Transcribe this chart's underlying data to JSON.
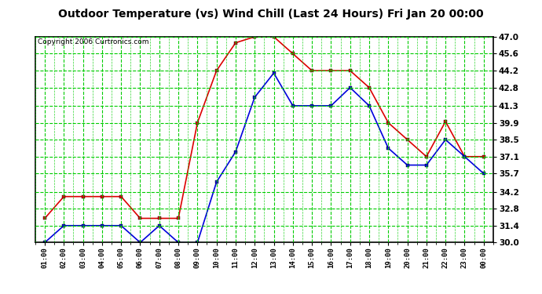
{
  "title": "Outdoor Temperature (vs) Wind Chill (Last 24 Hours) Fri Jan 20 00:00",
  "copyright": "Copyright 2006 Curtronics.com",
  "x_labels": [
    "01:00",
    "02:00",
    "03:00",
    "04:00",
    "05:00",
    "06:00",
    "07:00",
    "08:00",
    "09:00",
    "10:00",
    "11:00",
    "12:00",
    "13:00",
    "14:00",
    "15:00",
    "16:00",
    "17:00",
    "18:00",
    "19:00",
    "20:00",
    "21:00",
    "22:00",
    "23:00",
    "00:00"
  ],
  "y_min": 30.0,
  "y_max": 47.0,
  "y_ticks": [
    30.0,
    31.4,
    32.8,
    34.2,
    35.7,
    37.1,
    38.5,
    39.9,
    41.3,
    42.8,
    44.2,
    45.6,
    47.0
  ],
  "temp_color": "#dd0000",
  "windchill_color": "#0000dd",
  "grid_color": "#00cc00",
  "plot_bg_color": "#ffffff",
  "outer_bg": "#ffffff",
  "temp_data": [
    32.0,
    33.8,
    33.8,
    33.8,
    33.8,
    32.0,
    32.0,
    32.0,
    39.9,
    44.2,
    46.5,
    47.0,
    47.0,
    45.6,
    44.2,
    44.2,
    44.2,
    42.8,
    39.9,
    38.5,
    37.1,
    40.0,
    37.1,
    37.1
  ],
  "windchill_data": [
    30.0,
    31.4,
    31.4,
    31.4,
    31.4,
    30.0,
    31.4,
    30.0,
    30.0,
    35.0,
    37.5,
    42.0,
    44.0,
    41.3,
    41.3,
    41.3,
    42.8,
    41.3,
    37.8,
    36.4,
    36.4,
    38.5,
    37.1,
    35.7
  ]
}
